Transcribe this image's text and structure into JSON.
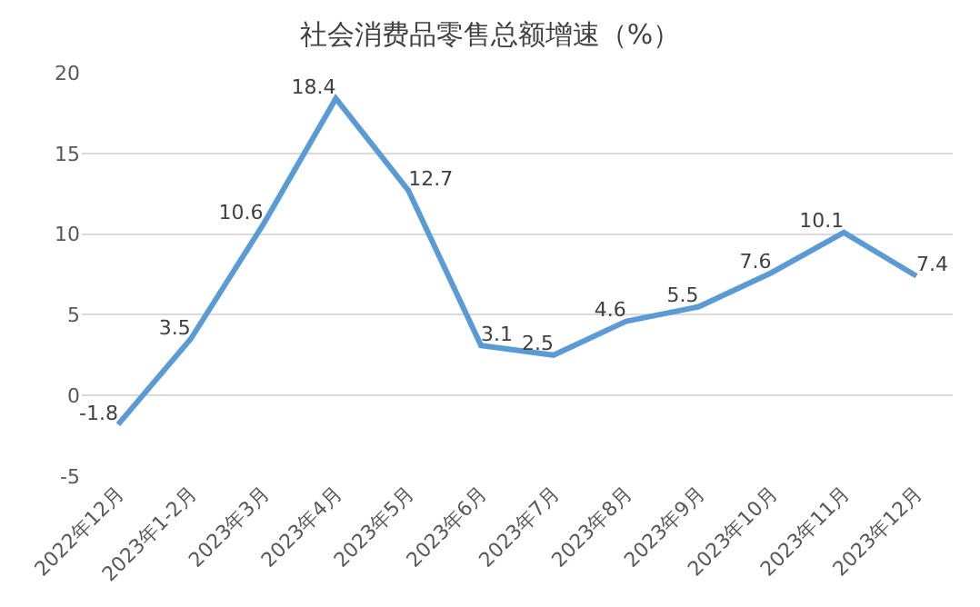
{
  "chart_data": {
    "type": "line",
    "title": "社会消费品零售总额增速（%）",
    "categories": [
      "2022年12月",
      "2023年1-2月",
      "2023年3月",
      "2023年4月",
      "2023年5月",
      "2023年6月",
      "2023年7月",
      "2023年8月",
      "2023年9月",
      "2023年10月",
      "2023年11月",
      "2023年12月"
    ],
    "values": [
      -1.8,
      3.5,
      10.6,
      18.4,
      12.7,
      3.1,
      2.5,
      4.6,
      5.5,
      7.6,
      10.1,
      7.4
    ],
    "color": "#5b9bd5",
    "ylim": [
      -5,
      20
    ],
    "yticks": [
      -5,
      0,
      5,
      10,
      15,
      20
    ],
    "grid": "y",
    "data_labels": true,
    "legend": false,
    "marker": "none",
    "line_style": "solid"
  }
}
